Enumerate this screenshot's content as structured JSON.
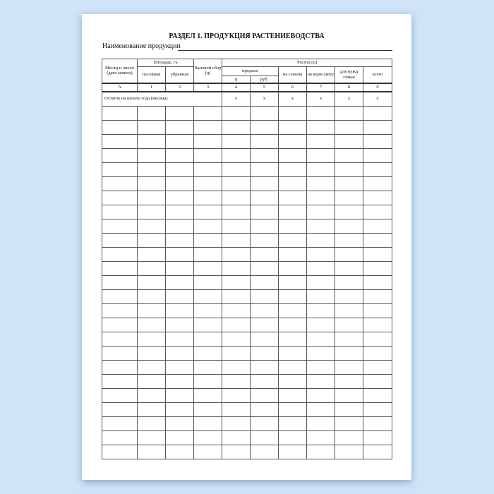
{
  "title": "РАЗДЕЛ 1. ПРОДУКЦИЯ РАСТЕНИЕВОДСТВА",
  "product_label": "Наименование продукции",
  "headers": {
    "date": "Месяц и число (дата записи)",
    "area": "Площадь, га",
    "sown": "посевная",
    "harvested": "убранная",
    "gross": "Валовой сбор (ц)",
    "expense": "Расход (ц)",
    "sold": "продано",
    "sold_c": "ц",
    "sold_rub": "руб.",
    "seeds": "на семена",
    "feed": "на корм скоту",
    "family": "для нужд семьи",
    "total": "всего"
  },
  "column_numbers": [
    "А",
    "1",
    "2",
    "3",
    "4",
    "5",
    "6",
    "7",
    "8",
    "9"
  ],
  "balance_row": {
    "label": "Остаток на начало года (месяца)",
    "marks": [
      "х",
      "х",
      "х",
      "х",
      "х",
      "х"
    ]
  }
}
